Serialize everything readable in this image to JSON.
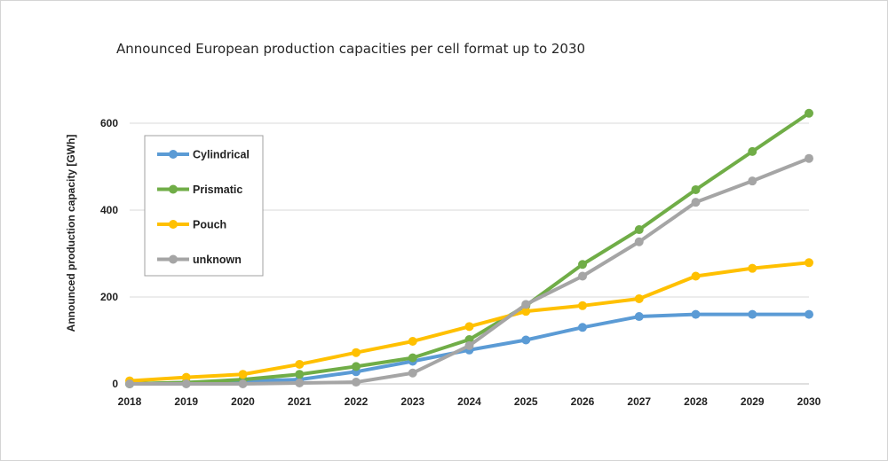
{
  "chart_data": {
    "type": "line",
    "title": "Announced European production capacities per cell format up to 2030",
    "xlabel": "",
    "ylabel": "Announced production capacity [GWh]",
    "x": [
      "2018",
      "2019",
      "2020",
      "2021",
      "2022",
      "2023",
      "2024",
      "2025",
      "2026",
      "2027",
      "2028",
      "2029",
      "2030"
    ],
    "ylim": [
      0,
      700
    ],
    "yticks": [
      0,
      200,
      400,
      600
    ],
    "grid": true,
    "legend_position": "top-left",
    "series": [
      {
        "name": "Cylindrical",
        "color": "#5b9bd5",
        "values": [
          0,
          3,
          6,
          10,
          28,
          52,
          78,
          101,
          130,
          155,
          160,
          160,
          160
        ]
      },
      {
        "name": "Prismatic",
        "color": "#70ad47",
        "values": [
          0,
          3,
          10,
          22,
          40,
          60,
          102,
          180,
          275,
          355,
          447,
          535,
          623
        ]
      },
      {
        "name": "Pouch",
        "color": "#ffc000",
        "values": [
          7,
          15,
          22,
          45,
          72,
          98,
          132,
          167,
          180,
          196,
          248,
          266,
          279
        ]
      },
      {
        "name": "unknown",
        "color": "#a5a5a5",
        "values": [
          0,
          0,
          0,
          2,
          4,
          25,
          88,
          183,
          248,
          327,
          418,
          467,
          519
        ]
      }
    ]
  }
}
